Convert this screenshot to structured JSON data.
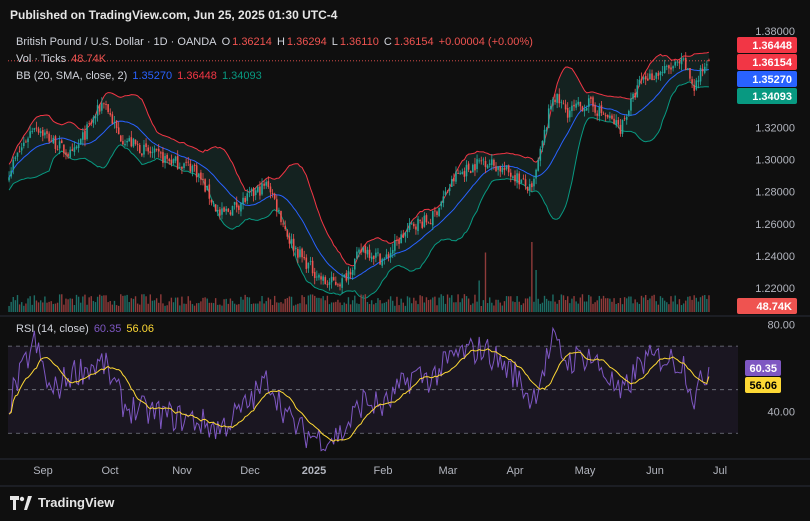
{
  "header": {
    "published": "Published on TradingView.com, Jun 25, 2025 01:30 UTC-4"
  },
  "legend": {
    "symbol": "British Pound / U.S. Dollar · 1D · OANDA",
    "o_label": "O",
    "o": "1.36214",
    "h_label": "H",
    "h": "1.36294",
    "l_label": "L",
    "l": "1.36110",
    "c_label": "C",
    "c": "1.36154",
    "change": "+0.00004 (+0.00%)",
    "vol_label": "Vol · Ticks",
    "vol": "48.74K",
    "bb_label": "BB (20, SMA, close, 2)",
    "bb_basis": "1.35270",
    "bb_upper": "1.36448",
    "bb_lower": "1.34093",
    "rsi_label": "RSI (14, close)",
    "rsi": "60.35",
    "rsi_ma": "56.06"
  },
  "footer": {
    "brand": "TradingView"
  },
  "colors": {
    "bg": "#0f0f0f",
    "up": "#26a69a",
    "down": "#ef5350",
    "basis": "#2962ff",
    "upper": "#f23645",
    "lower": "#089981",
    "rsi": "#7e57c2",
    "rsi_ma": "#fdd835",
    "text": "#d1d4dc",
    "grid_label": "#b2b5be"
  },
  "chart_data": {
    "type": "candlestick",
    "price_axis": {
      "ticks": [
        "1.38000",
        "1.32000",
        "1.30000",
        "1.28000",
        "1.26000",
        "1.24000",
        "1.22000"
      ],
      "range": [
        1.205,
        1.382
      ]
    },
    "price_badges": [
      {
        "value": "1.36448",
        "color": "#f23645"
      },
      {
        "value": "1.36154",
        "color": "#f23645"
      },
      {
        "value": "1.35270",
        "color": "#2962ff"
      },
      {
        "value": "1.34093",
        "color": "#089981"
      }
    ],
    "volume_badge": "48.74K",
    "rsi_axis": {
      "ticks": [
        "80.00",
        "40.00"
      ],
      "range": [
        20,
        82
      ],
      "bands": [
        70,
        50,
        30
      ]
    },
    "rsi_badges": [
      {
        "value": "60.35",
        "color": "#7e57c2"
      },
      {
        "value": "56.06",
        "color": "#fdd835"
      }
    ],
    "x_axis": {
      "labels": [
        "Sep",
        "Oct",
        "Nov",
        "Dec",
        "2025",
        "Feb",
        "Mar",
        "Apr",
        "May",
        "Jun",
        "Jul"
      ]
    },
    "anchors": [
      [
        0,
        1.293
      ],
      [
        12,
        1.322
      ],
      [
        20,
        1.312
      ],
      [
        30,
        1.302
      ],
      [
        45,
        1.337
      ],
      [
        52,
        1.315
      ],
      [
        65,
        1.305
      ],
      [
        75,
        1.3
      ],
      [
        88,
        1.295
      ],
      [
        100,
        1.265
      ],
      [
        112,
        1.275
      ],
      [
        123,
        1.285
      ],
      [
        133,
        1.25
      ],
      [
        140,
        1.237
      ],
      [
        150,
        1.223
      ],
      [
        158,
        1.224
      ],
      [
        168,
        1.245
      ],
      [
        178,
        1.237
      ],
      [
        185,
        1.25
      ],
      [
        192,
        1.26
      ],
      [
        200,
        1.262
      ],
      [
        212,
        1.29
      ],
      [
        225,
        1.3
      ],
      [
        240,
        1.29
      ],
      [
        248,
        1.28
      ],
      [
        258,
        1.34
      ],
      [
        265,
        1.33
      ],
      [
        275,
        1.335
      ],
      [
        285,
        1.325
      ],
      [
        290,
        1.32
      ],
      [
        300,
        1.35
      ],
      [
        310,
        1.355
      ],
      [
        320,
        1.36
      ],
      [
        325,
        1.345
      ],
      [
        332,
        1.364
      ]
    ],
    "volume_spikes": [
      [
        223,
        0.45
      ],
      [
        226,
        0.85
      ],
      [
        248,
        1.0
      ],
      [
        250,
        0.6
      ]
    ],
    "rsi_anchors": [
      [
        0,
        44
      ],
      [
        12,
        72
      ],
      [
        20,
        48
      ],
      [
        30,
        58
      ],
      [
        45,
        62
      ],
      [
        55,
        42
      ],
      [
        65,
        40
      ],
      [
        75,
        38
      ],
      [
        88,
        36
      ],
      [
        100,
        32
      ],
      [
        112,
        42
      ],
      [
        123,
        55
      ],
      [
        133,
        36
      ],
      [
        140,
        30
      ],
      [
        150,
        27
      ],
      [
        158,
        30
      ],
      [
        168,
        45
      ],
      [
        178,
        42
      ],
      [
        185,
        50
      ],
      [
        192,
        57
      ],
      [
        200,
        55
      ],
      [
        212,
        66
      ],
      [
        225,
        69
      ],
      [
        240,
        57
      ],
      [
        248,
        45
      ],
      [
        258,
        72
      ],
      [
        265,
        63
      ],
      [
        275,
        66
      ],
      [
        285,
        55
      ],
      [
        290,
        46
      ],
      [
        300,
        63
      ],
      [
        310,
        65
      ],
      [
        320,
        62
      ],
      [
        325,
        46
      ],
      [
        332,
        60.35
      ]
    ]
  }
}
